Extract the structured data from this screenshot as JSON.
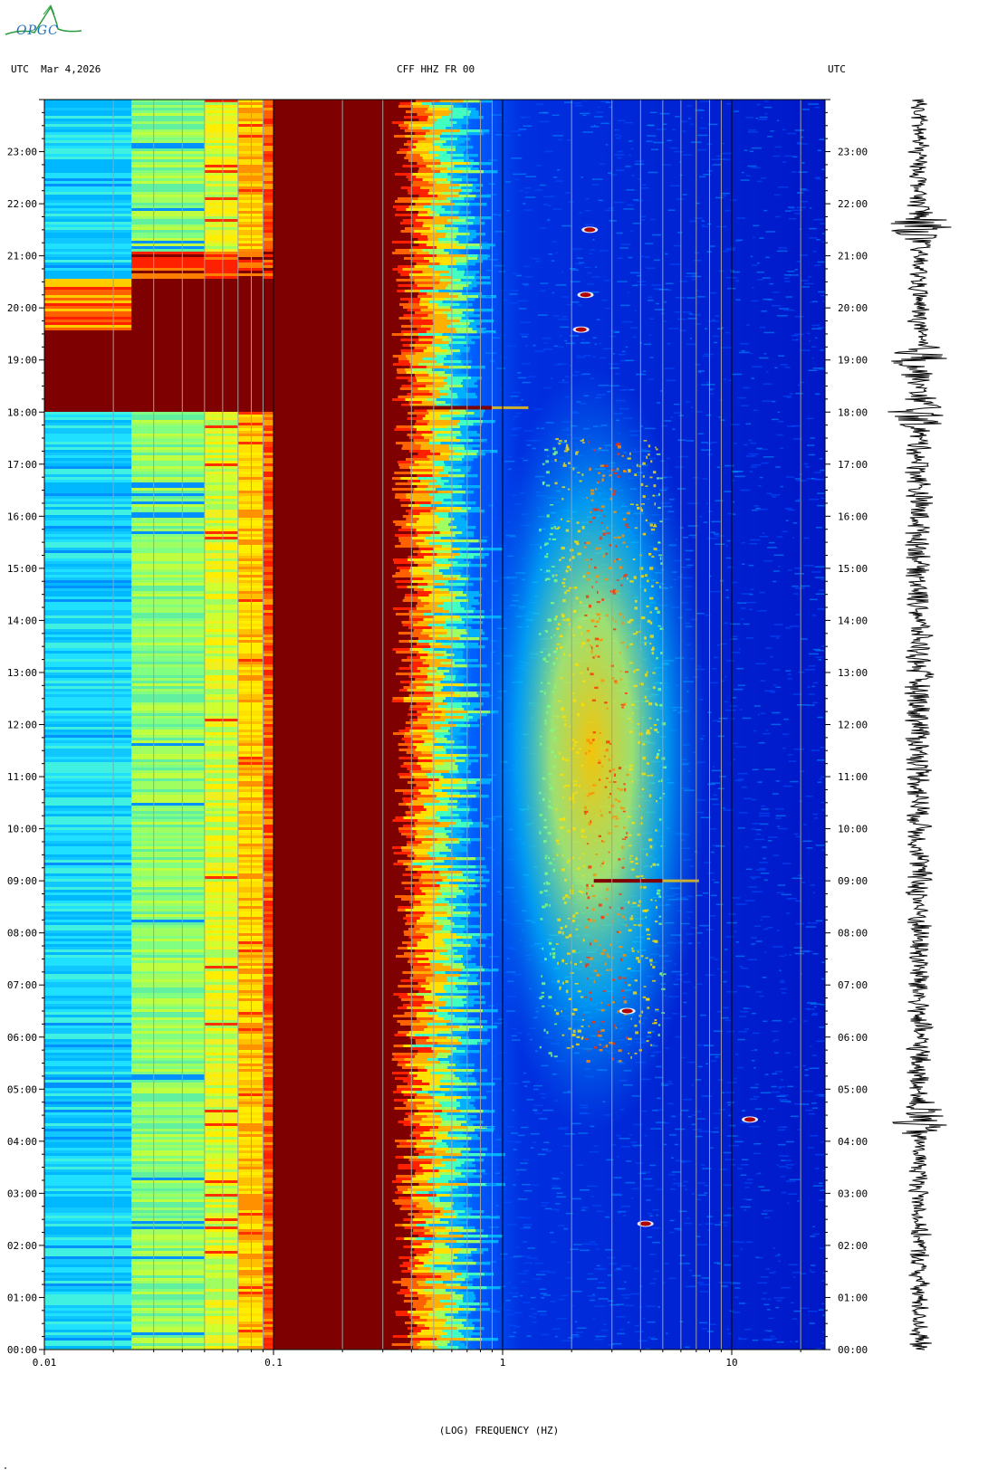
{
  "header": {
    "left": "UTC  Mar 4,2026",
    "center": "CFF HHZ FR 00",
    "right": "UTC"
  },
  "logo": {
    "text": "OPGC"
  },
  "chart_data": {
    "type": "heatmap",
    "title": "CFF HHZ FR 00",
    "date": "Mar 4,2026",
    "timezone": "UTC",
    "xlabel": "(LOG) FREQUENCY (HZ)",
    "x_scale": "log",
    "xlim": [
      0.01,
      25
    ],
    "x_tick_labels": [
      "0.01",
      "0.1",
      "1",
      "10"
    ],
    "x_gridlines_hz": [
      0.02,
      0.03,
      0.04,
      0.05,
      0.06,
      0.07,
      0.08,
      0.09,
      0.2,
      0.3,
      0.4,
      0.5,
      0.6,
      0.7,
      0.8,
      0.9,
      2,
      3,
      4,
      5,
      6,
      7,
      8,
      9,
      20
    ],
    "ylabel_left": "UTC",
    "y_tick_labels": [
      "00:00",
      "01:00",
      "02:00",
      "03:00",
      "04:00",
      "05:00",
      "06:00",
      "07:00",
      "08:00",
      "09:00",
      "10:00",
      "11:00",
      "12:00",
      "13:00",
      "14:00",
      "15:00",
      "16:00",
      "17:00",
      "18:00",
      "19:00",
      "20:00",
      "21:00",
      "22:00",
      "23:00"
    ],
    "colormap": [
      "#00007f",
      "#0000ff",
      "#0080ff",
      "#00ffff",
      "#80ff80",
      "#ffff00",
      "#ff8000",
      "#ff0000",
      "#7f0000"
    ],
    "features": [
      {
        "label": "saturated band",
        "freq_range_hz": [
          0.1,
          0.3
        ],
        "time_range": [
          "00:00",
          "24:00"
        ]
      },
      {
        "label": "saturated low-frequency block",
        "freq_range_hz": [
          0.01,
          0.1
        ],
        "time_range": [
          "18:00",
          "20:30"
        ]
      },
      {
        "label": "microseism energy",
        "freq_range_hz": [
          1.2,
          5
        ],
        "time_range": [
          "05:30",
          "17:30"
        ]
      },
      {
        "label": "transient",
        "freq_hz": 2.4,
        "time": "21:30"
      },
      {
        "label": "transient",
        "freq_hz": 2.3,
        "time": "20:15"
      },
      {
        "label": "transient",
        "freq_hz": 2.2,
        "time": "19:35"
      },
      {
        "label": "transient",
        "freq_range_hz": [
          0.3,
          0.9
        ],
        "time": "18:05"
      },
      {
        "label": "transient",
        "freq_range_hz": [
          2.5,
          5
        ],
        "time": "09:00"
      },
      {
        "label": "transient",
        "freq_hz": 3.5,
        "time": "06:30"
      },
      {
        "label": "transient",
        "freq_hz": 4.2,
        "time": "02:25"
      },
      {
        "label": "transient",
        "freq_hz": 12,
        "time": "04:25"
      }
    ],
    "seismogram_events": [
      "19:00",
      "18:00",
      "21:35",
      "04:25"
    ]
  }
}
